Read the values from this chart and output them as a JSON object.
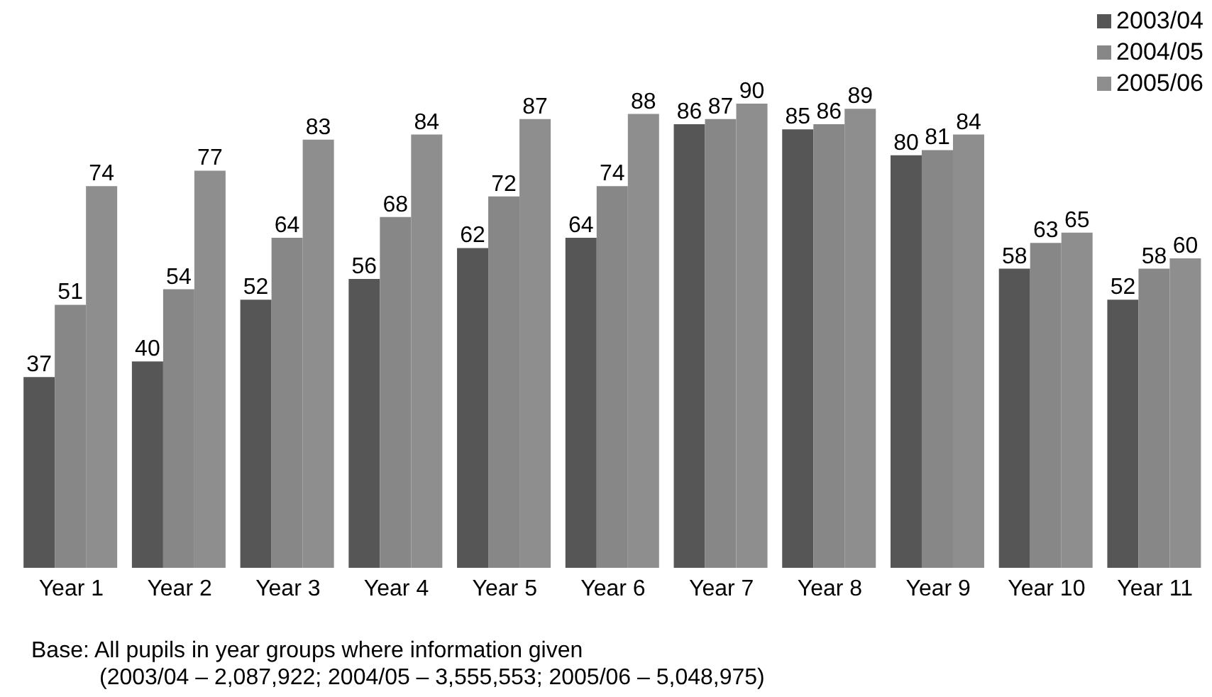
{
  "chart_data": {
    "type": "bar",
    "categories": [
      "Year 1",
      "Year 2",
      "Year 3",
      "Year 4",
      "Year 5",
      "Year 6",
      "Year 7",
      "Year 8",
      "Year 9",
      "Year 10",
      "Year 11"
    ],
    "series": [
      {
        "name": "2003/04",
        "color": "#565656",
        "values": [
          37,
          40,
          52,
          56,
          62,
          64,
          86,
          85,
          80,
          58,
          52
        ]
      },
      {
        "name": "2004/05",
        "color": "#878787",
        "values": [
          51,
          54,
          64,
          68,
          72,
          74,
          87,
          86,
          81,
          63,
          58
        ]
      },
      {
        "name": "2005/06",
        "color": "#8e8e8e",
        "values": [
          74,
          77,
          83,
          84,
          87,
          88,
          90,
          89,
          84,
          65,
          60
        ]
      }
    ],
    "data_labels": true,
    "legend": "top right",
    "grid": false,
    "annotations": [
      "Base: All pupils in year groups where information given",
      "(2003/04 – 2,087,922; 2004/05 – 3,555,553; 2005/06 – 5,048,975)"
    ]
  }
}
